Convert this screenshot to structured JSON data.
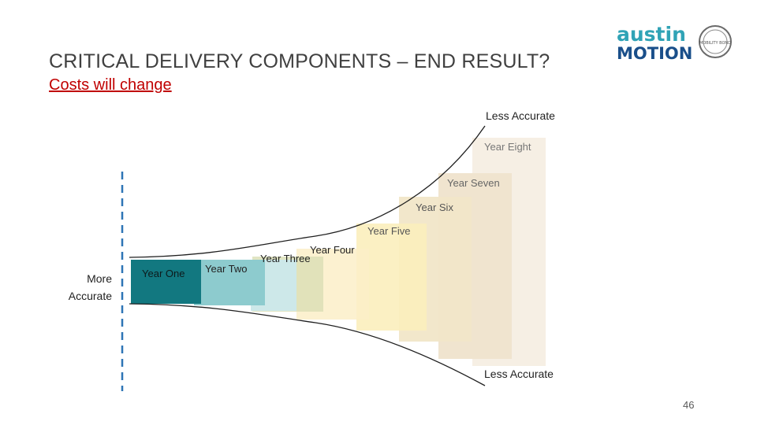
{
  "title": "CRITICAL DELIVERY COMPONENTS – END RESULT?",
  "subtitle": "Costs will change",
  "logo": {
    "line1": "austin",
    "line2": "MOTION",
    "seal": "MOBILITY BOND"
  },
  "labels": {
    "top": "Less Accurate",
    "bottom": "Less Accurate",
    "left_line1": "More",
    "left_line2": "Accurate"
  },
  "years": [
    "Year One",
    "Year Two",
    "Year Three",
    "Year Four",
    "Year Five",
    "Year Six",
    "Year Seven",
    "Year Eight"
  ],
  "colors": {
    "y1": "#127880",
    "y2": "#8dcbce",
    "y3": "#cde8e9",
    "y4": "#d9dfb4",
    "y5": "#fbeebc",
    "y6": "#f1e6c8",
    "y7": "#f0e4cf",
    "y8": "#f6efe4",
    "dash": "#2e75b6",
    "title": "#404040",
    "accent": "#c00000"
  },
  "page_number": "46"
}
